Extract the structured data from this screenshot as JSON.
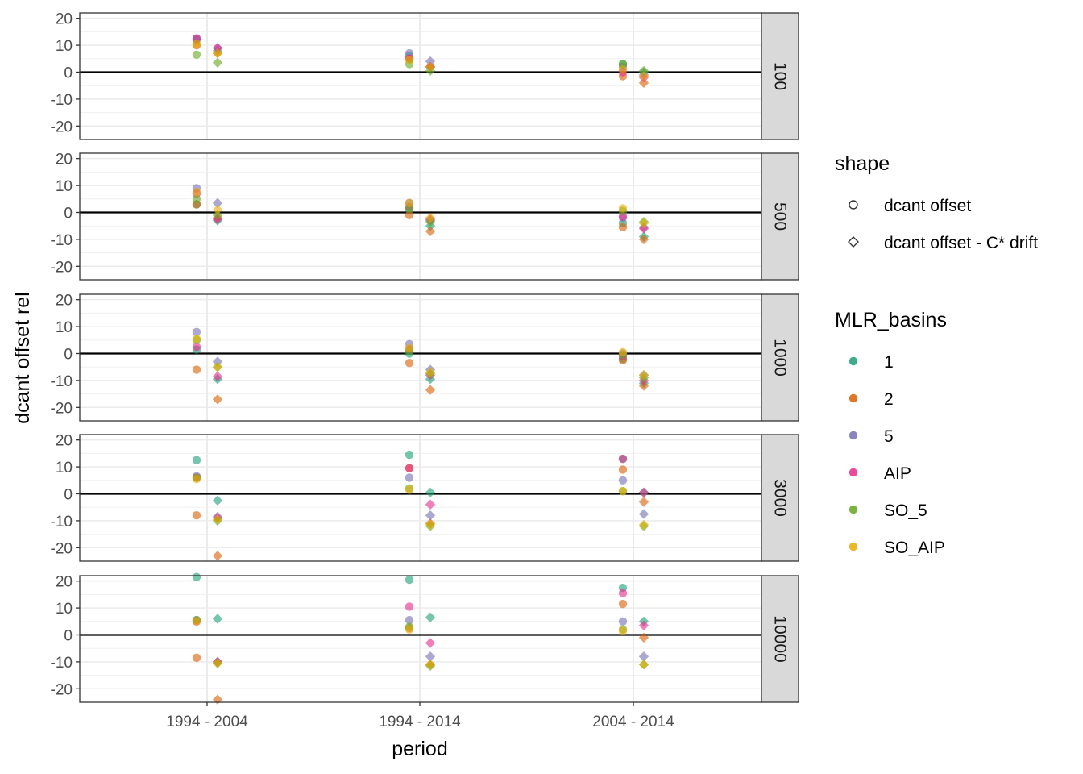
{
  "chart_data": {
    "type": "scatter",
    "facet_by": "panel",
    "xlabel": "period",
    "ylabel": "dcant offset rel",
    "categories": [
      "1994 - 2004",
      "1994 - 2014",
      "2004 - 2014"
    ],
    "ylim": [
      -25,
      22
    ],
    "yticks": [
      -20,
      -10,
      0,
      10,
      20
    ],
    "hline": 0,
    "grid": true,
    "panels": [
      "100",
      "500",
      "1000",
      "3000",
      "10000"
    ],
    "legend_position": "right",
    "shape_legend": {
      "title": "shape",
      "items": [
        {
          "label": "dcant offset",
          "shape": "circle"
        },
        {
          "label": "dcant offset - C* drift",
          "shape": "diamond"
        }
      ]
    },
    "color_legend": {
      "title": "MLR_basins",
      "items": [
        {
          "label": "1",
          "color": "#1B9E77"
        },
        {
          "label": "2",
          "color": "#D95F02"
        },
        {
          "label": "5",
          "color": "#7570B3"
        },
        {
          "label": "AIP",
          "color": "#E7298A"
        },
        {
          "label": "SO_5",
          "color": "#66A61E"
        },
        {
          "label": "SO_AIP",
          "color": "#E6AB02"
        }
      ]
    },
    "series": [
      {
        "panel": "100",
        "basin": "1",
        "shape": "circle",
        "values": [
          12,
          6,
          3
        ]
      },
      {
        "panel": "100",
        "basin": "2",
        "shape": "circle",
        "values": [
          10,
          5,
          -1.5
        ]
      },
      {
        "panel": "100",
        "basin": "5",
        "shape": "circle",
        "values": [
          12.5,
          7,
          2
        ]
      },
      {
        "panel": "100",
        "basin": "AIP",
        "shape": "circle",
        "values": [
          12.5,
          5,
          0
        ]
      },
      {
        "panel": "100",
        "basin": "SO_5",
        "shape": "circle",
        "values": [
          6.5,
          3,
          3
        ]
      },
      {
        "panel": "100",
        "basin": "SO_AIP",
        "shape": "circle",
        "values": [
          10.5,
          4.5,
          1
        ]
      },
      {
        "panel": "100",
        "basin": "1",
        "shape": "diamond",
        "values": [
          8,
          2,
          0
        ]
      },
      {
        "panel": "100",
        "basin": "2",
        "shape": "diamond",
        "values": [
          7,
          2,
          -4
        ]
      },
      {
        "panel": "100",
        "basin": "5",
        "shape": "diamond",
        "values": [
          9,
          4,
          -1
        ]
      },
      {
        "panel": "100",
        "basin": "AIP",
        "shape": "diamond",
        "values": [
          9,
          2,
          -2
        ]
      },
      {
        "panel": "100",
        "basin": "SO_5",
        "shape": "diamond",
        "values": [
          3.5,
          0.5,
          0.5
        ]
      },
      {
        "panel": "100",
        "basin": "SO_AIP",
        "shape": "diamond",
        "values": [
          7,
          2,
          -1.5
        ]
      },
      {
        "panel": "500",
        "basin": "1",
        "shape": "circle",
        "values": [
          3,
          1,
          -4
        ]
      },
      {
        "panel": "500",
        "basin": "2",
        "shape": "circle",
        "values": [
          3,
          -1,
          -5.5
        ]
      },
      {
        "panel": "500",
        "basin": "5",
        "shape": "circle",
        "values": [
          9,
          3.5,
          -2
        ]
      },
      {
        "panel": "500",
        "basin": "AIP",
        "shape": "circle",
        "values": [
          7,
          2,
          -1.5
        ]
      },
      {
        "panel": "500",
        "basin": "SO_5",
        "shape": "circle",
        "values": [
          5,
          1.5,
          0.5
        ]
      },
      {
        "panel": "500",
        "basin": "SO_AIP",
        "shape": "circle",
        "values": [
          7.5,
          3.5,
          1.5
        ]
      },
      {
        "panel": "500",
        "basin": "1",
        "shape": "diamond",
        "values": [
          -3,
          -5,
          -9
        ]
      },
      {
        "panel": "500",
        "basin": "2",
        "shape": "diamond",
        "values": [
          -2,
          -7,
          -10
        ]
      },
      {
        "panel": "500",
        "basin": "5",
        "shape": "diamond",
        "values": [
          3.5,
          -3,
          -5.5
        ]
      },
      {
        "panel": "500",
        "basin": "AIP",
        "shape": "diamond",
        "values": [
          -2.5,
          -2.5,
          -6
        ]
      },
      {
        "panel": "500",
        "basin": "SO_5",
        "shape": "diamond",
        "values": [
          -1,
          -3.5,
          -3.5
        ]
      },
      {
        "panel": "500",
        "basin": "SO_AIP",
        "shape": "diamond",
        "values": [
          1,
          -2,
          -4
        ]
      },
      {
        "panel": "1000",
        "basin": "1",
        "shape": "circle",
        "values": [
          1.5,
          0,
          -2
        ]
      },
      {
        "panel": "1000",
        "basin": "2",
        "shape": "circle",
        "values": [
          -6,
          -3.5,
          -2.5
        ]
      },
      {
        "panel": "1000",
        "basin": "5",
        "shape": "circle",
        "values": [
          8,
          3.5,
          0
        ]
      },
      {
        "panel": "1000",
        "basin": "AIP",
        "shape": "circle",
        "values": [
          2.5,
          1.5,
          -1
        ]
      },
      {
        "panel": "1000",
        "basin": "SO_5",
        "shape": "circle",
        "values": [
          5,
          1,
          -0.5
        ]
      },
      {
        "panel": "1000",
        "basin": "SO_AIP",
        "shape": "circle",
        "values": [
          5.5,
          2,
          0.5
        ]
      },
      {
        "panel": "1000",
        "basin": "1",
        "shape": "diamond",
        "values": [
          -9.5,
          -9.5,
          -11
        ]
      },
      {
        "panel": "1000",
        "basin": "2",
        "shape": "diamond",
        "values": [
          -17,
          -13.5,
          -12
        ]
      },
      {
        "panel": "1000",
        "basin": "5",
        "shape": "diamond",
        "values": [
          -3,
          -6,
          -8
        ]
      },
      {
        "panel": "1000",
        "basin": "AIP",
        "shape": "diamond",
        "values": [
          -8.5,
          -8,
          -10
        ]
      },
      {
        "panel": "1000",
        "basin": "SO_5",
        "shape": "diamond",
        "values": [
          -5,
          -7.5,
          -9
        ]
      },
      {
        "panel": "1000",
        "basin": "SO_AIP",
        "shape": "diamond",
        "values": [
          -5,
          -7,
          -8
        ]
      },
      {
        "panel": "3000",
        "basin": "1",
        "shape": "circle",
        "values": [
          12.5,
          14.5,
          13
        ]
      },
      {
        "panel": "3000",
        "basin": "2",
        "shape": "circle",
        "values": [
          -8,
          9.5,
          9
        ]
      },
      {
        "panel": "3000",
        "basin": "5",
        "shape": "circle",
        "values": [
          6.5,
          6,
          5
        ]
      },
      {
        "panel": "3000",
        "basin": "AIP",
        "shape": "circle",
        "values": [
          6,
          9.5,
          13
        ]
      },
      {
        "panel": "3000",
        "basin": "SO_5",
        "shape": "circle",
        "values": [
          6,
          2,
          1
        ]
      },
      {
        "panel": "3000",
        "basin": "SO_AIP",
        "shape": "circle",
        "values": [
          5.5,
          1.5,
          1
        ]
      },
      {
        "panel": "3000",
        "basin": "1",
        "shape": "diamond",
        "values": [
          -2.5,
          0.5,
          0.5
        ]
      },
      {
        "panel": "3000",
        "basin": "2",
        "shape": "diamond",
        "values": [
          -23,
          -11,
          -3
        ]
      },
      {
        "panel": "3000",
        "basin": "5",
        "shape": "diamond",
        "values": [
          -8.5,
          -8,
          -7.5
        ]
      },
      {
        "panel": "3000",
        "basin": "AIP",
        "shape": "diamond",
        "values": [
          -9,
          -4,
          0.5
        ]
      },
      {
        "panel": "3000",
        "basin": "SO_5",
        "shape": "diamond",
        "values": [
          -10,
          -12,
          -12
        ]
      },
      {
        "panel": "3000",
        "basin": "SO_AIP",
        "shape": "diamond",
        "values": [
          -9.5,
          -11.5,
          -11.5
        ]
      },
      {
        "panel": "10000",
        "basin": "1",
        "shape": "circle",
        "values": [
          21.5,
          20.5,
          17.5
        ]
      },
      {
        "panel": "10000",
        "basin": "2",
        "shape": "circle",
        "values": [
          -8.5,
          2.5,
          11.5
        ]
      },
      {
        "panel": "10000",
        "basin": "5",
        "shape": "circle",
        "values": [
          5.5,
          5.5,
          5
        ]
      },
      {
        "panel": "10000",
        "basin": "AIP",
        "shape": "circle",
        "values": [
          5,
          10.5,
          15.5
        ]
      },
      {
        "panel": "10000",
        "basin": "SO_5",
        "shape": "circle",
        "values": [
          5.5,
          3,
          2
        ]
      },
      {
        "panel": "10000",
        "basin": "SO_AIP",
        "shape": "circle",
        "values": [
          5,
          2,
          1.5
        ]
      },
      {
        "panel": "10000",
        "basin": "1",
        "shape": "diamond",
        "values": [
          6,
          6.5,
          5
        ]
      },
      {
        "panel": "10000",
        "basin": "2",
        "shape": "diamond",
        "values": [
          -24,
          -11,
          -1
        ]
      },
      {
        "panel": "10000",
        "basin": "5",
        "shape": "diamond",
        "values": [
          -10,
          -8,
          -8
        ]
      },
      {
        "panel": "10000",
        "basin": "AIP",
        "shape": "diamond",
        "values": [
          -10,
          -3,
          3.5
        ]
      },
      {
        "panel": "10000",
        "basin": "SO_5",
        "shape": "diamond",
        "values": [
          -10.5,
          -11.5,
          -11
        ]
      },
      {
        "panel": "10000",
        "basin": "SO_AIP",
        "shape": "diamond",
        "values": [
          -10.5,
          -11,
          -11
        ]
      }
    ]
  }
}
